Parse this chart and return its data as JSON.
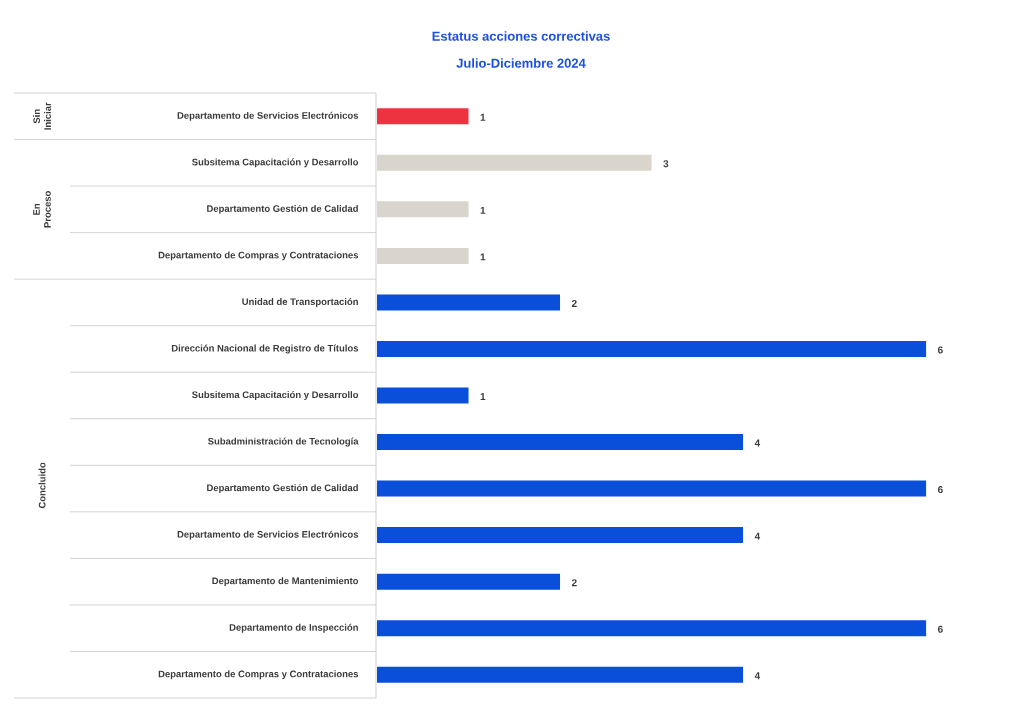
{
  "chart_data": {
    "type": "bar",
    "orientation": "horizontal",
    "title": "Estatus acciones correctivas",
    "subtitle": "Julio-Diciembre 2024",
    "categories": [
      "Departamento de Servicios Electrónicos",
      "Subsitema Capacitación y Desarrollo",
      "Departamento Gestión de Calidad",
      "Departamento de Compras y Contrataciones",
      "Unidad de Transportación",
      "Dirección Nacional de Registro de Títulos",
      "Subsitema Capacitación y Desarrollo",
      "Subadministración de Tecnología",
      "Departamento Gestión de Calidad",
      "Departamento de Servicios Electrónicos",
      "Departamento de Mantenimiento",
      "Departamento de Inspección",
      "Departamento de Compras y Contrataciones"
    ],
    "values": [
      1,
      3,
      1,
      1,
      2,
      6,
      1,
      4,
      6,
      4,
      2,
      6,
      4
    ],
    "colors": [
      "#ee3340",
      "#d9d4cc",
      "#d9d4cc",
      "#d9d4cc",
      "#0a4fd9",
      "#0a4fd9",
      "#0a4fd9",
      "#0a4fd9",
      "#0a4fd9",
      "#0a4fd9",
      "#0a4fd9",
      "#0a4fd9",
      "#0a4fd9"
    ],
    "data_labels": true,
    "annotations": [
      "Sin Iniciar",
      "En Proceso",
      "Concluido"
    ]
  }
}
